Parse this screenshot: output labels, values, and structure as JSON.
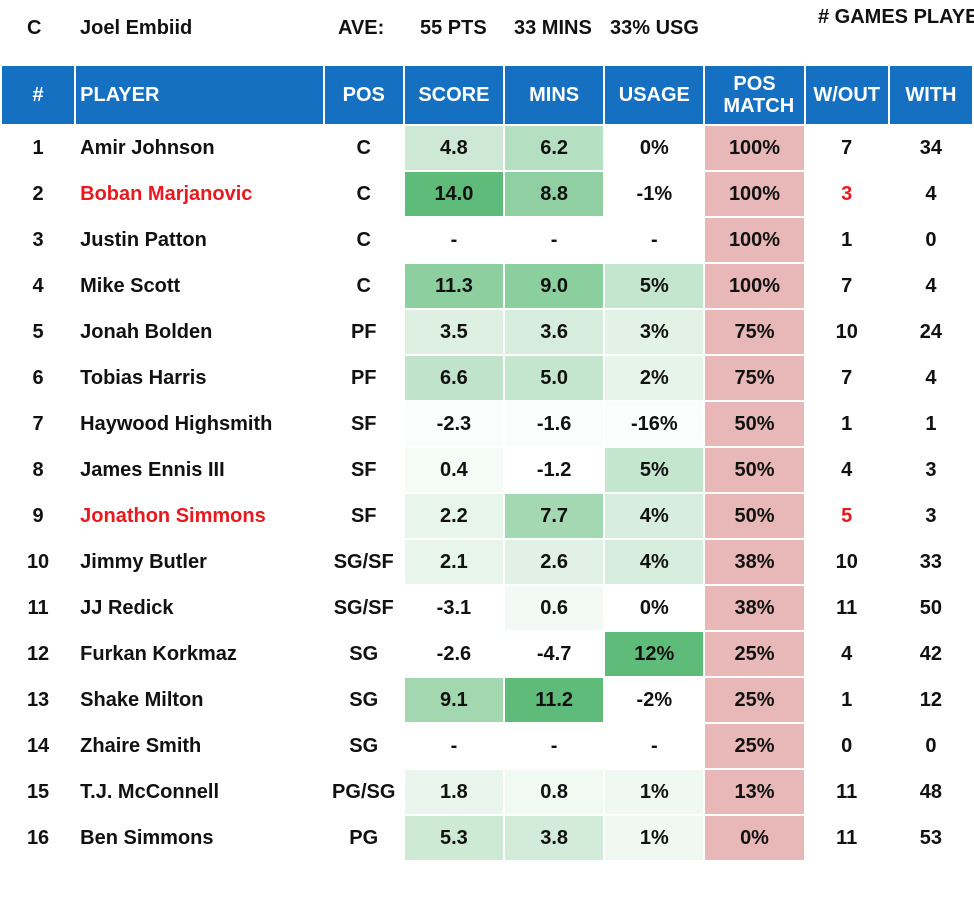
{
  "summary": {
    "position": "C",
    "player": "Joel Embiid",
    "ave_label": "AVE:",
    "pts": "55 PTS",
    "mins": "33 MINS",
    "usg": "33% USG",
    "games_played_label": "# GAMES PLAYED"
  },
  "columns": [
    "#",
    "PLAYER",
    "POS",
    "SCORE",
    "MINS",
    "USAGE",
    "POS MATCH",
    "W/OUT",
    "WITH"
  ],
  "colors": {
    "header_bg": "#1570c2",
    "highlight_red": "#e8191f",
    "pos_match_bg": "#e8b8b8"
  },
  "rows": [
    {
      "rank": "1",
      "player": "Amir Johnson",
      "pos": "C",
      "score": "4.8",
      "mins": "6.2",
      "usage": "0%",
      "pos_match": "100%",
      "without": "7",
      "with": "34",
      "highlight": false,
      "bg": [
        "#cde9d5",
        "#b4dfc1",
        "#ffffff"
      ]
    },
    {
      "rank": "2",
      "player": "Boban Marjanovic",
      "pos": "C",
      "score": "14.0",
      "mins": "8.8",
      "usage": "-1%",
      "pos_match": "100%",
      "without": "3",
      "with": "4",
      "highlight": true,
      "bg": [
        "#5fbb7a",
        "#8fcfa1",
        "#ffffff"
      ]
    },
    {
      "rank": "3",
      "player": "Justin Patton",
      "pos": "C",
      "score": "-",
      "mins": "-",
      "usage": "-",
      "pos_match": "100%",
      "without": "1",
      "with": "0",
      "highlight": false,
      "bg": [
        "#ffffff",
        "#ffffff",
        "#ffffff"
      ]
    },
    {
      "rank": "4",
      "player": "Mike Scott",
      "pos": "C",
      "score": "11.3",
      "mins": "9.0",
      "usage": "5%",
      "pos_match": "100%",
      "without": "7",
      "with": "4",
      "highlight": false,
      "bg": [
        "#8dcf9f",
        "#8ccf9e",
        "#c4e6ce"
      ]
    },
    {
      "rank": "5",
      "player": "Jonah Bolden",
      "pos": "PF",
      "score": "3.5",
      "mins": "3.6",
      "usage": "3%",
      "pos_match": "75%",
      "without": "10",
      "with": "24",
      "highlight": false,
      "bg": [
        "#ddf0e2",
        "#d6ecdc",
        "#e3f2e7"
      ]
    },
    {
      "rank": "6",
      "player": "Tobias Harris",
      "pos": "PF",
      "score": "6.6",
      "mins": "5.0",
      "usage": "2%",
      "pos_match": "75%",
      "without": "7",
      "with": "4",
      "highlight": false,
      "bg": [
        "#bfe4c9",
        "#c4e6cd",
        "#e7f4ea"
      ]
    },
    {
      "rank": "7",
      "player": "Haywood Highsmith",
      "pos": "SF",
      "score": "-2.3",
      "mins": "-1.6",
      "usage": "-16%",
      "pos_match": "50%",
      "without": "1",
      "with": "1",
      "highlight": false,
      "bg": [
        "#fafdfb",
        "#fafdfb",
        "#fafdfb"
      ]
    },
    {
      "rank": "8",
      "player": "James Ennis III",
      "pos": "SF",
      "score": "0.4",
      "mins": "-1.2",
      "usage": "5%",
      "pos_match": "50%",
      "without": "4",
      "with": "3",
      "highlight": false,
      "bg": [
        "#f5fbf7",
        "#ffffff",
        "#c4e6ce"
      ]
    },
    {
      "rank": "9",
      "player": "Jonathon Simmons",
      "pos": "SF",
      "score": "2.2",
      "mins": "7.7",
      "usage": "4%",
      "pos_match": "50%",
      "without": "5",
      "with": "3",
      "highlight": true,
      "bg": [
        "#e8f5eb",
        "#a3d8b2",
        "#d7eddd"
      ]
    },
    {
      "rank": "10",
      "player": "Jimmy Butler",
      "pos": "SG/SF",
      "score": "2.1",
      "mins": "2.6",
      "usage": "4%",
      "pos_match": "38%",
      "without": "10",
      "with": "33",
      "highlight": false,
      "bg": [
        "#e8f5eb",
        "#e1f1e5",
        "#d7eddd"
      ]
    },
    {
      "rank": "11",
      "player": "JJ Redick",
      "pos": "SG/SF",
      "score": "-3.1",
      "mins": "0.6",
      "usage": "0%",
      "pos_match": "38%",
      "without": "11",
      "with": "50",
      "highlight": false,
      "bg": [
        "#ffffff",
        "#f3faf5",
        "#ffffff"
      ]
    },
    {
      "rank": "12",
      "player": "Furkan Korkmaz",
      "pos": "SG",
      "score": "-2.6",
      "mins": "-4.7",
      "usage": "12%",
      "pos_match": "25%",
      "without": "4",
      "with": "42",
      "highlight": false,
      "bg": [
        "#ffffff",
        "#ffffff",
        "#5fbb7a"
      ]
    },
    {
      "rank": "13",
      "player": "Shake Milton",
      "pos": "SG",
      "score": "9.1",
      "mins": "11.2",
      "usage": "-2%",
      "pos_match": "25%",
      "without": "1",
      "with": "12",
      "highlight": false,
      "bg": [
        "#a2d7b0",
        "#5fbb7a",
        "#ffffff"
      ]
    },
    {
      "rank": "14",
      "player": "Zhaire Smith",
      "pos": "SG",
      "score": "-",
      "mins": "-",
      "usage": "-",
      "pos_match": "25%",
      "without": "0",
      "with": "0",
      "highlight": false,
      "bg": [
        "#ffffff",
        "#ffffff",
        "#ffffff"
      ]
    },
    {
      "rank": "15",
      "player": "T.J. McConnell",
      "pos": "PG/SG",
      "score": "1.8",
      "mins": "0.8",
      "usage": "1%",
      "pos_match": "13%",
      "without": "11",
      "with": "48",
      "highlight": false,
      "bg": [
        "#eaf6ed",
        "#f1f9f3",
        "#eff8f1"
      ]
    },
    {
      "rank": "16",
      "player": "Ben Simmons",
      "pos": "PG",
      "score": "5.3",
      "mins": "3.8",
      "usage": "1%",
      "pos_match": "0%",
      "without": "11",
      "with": "53",
      "highlight": false,
      "bg": [
        "#cdeaD5",
        "#d3ebd9",
        "#eff8f1"
      ]
    }
  ]
}
